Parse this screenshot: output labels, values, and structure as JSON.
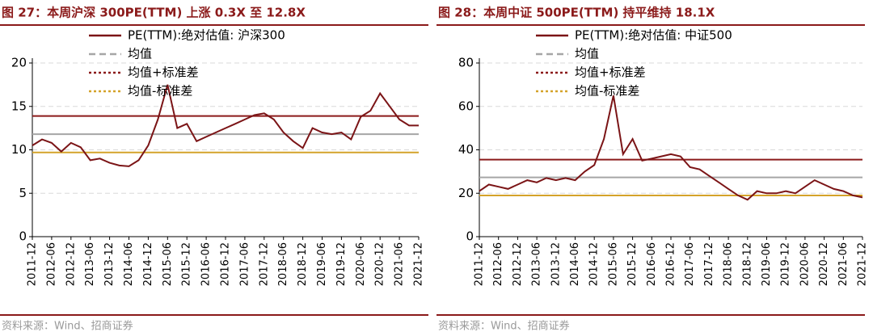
{
  "chart_data": [
    {
      "type": "line",
      "title": "图 27：本周沪深 300PE(TTM) 上涨 0.3X 至 12.8X",
      "source": "资料来源：Wind、招商证券",
      "x": [
        "2011-12",
        "2012-03",
        "2012-06",
        "2012-09",
        "2012-12",
        "2013-03",
        "2013-06",
        "2013-09",
        "2013-12",
        "2014-03",
        "2014-06",
        "2014-09",
        "2014-12",
        "2015-03",
        "2015-06",
        "2015-09",
        "2015-12",
        "2016-03",
        "2016-06",
        "2016-09",
        "2016-12",
        "2017-03",
        "2017-06",
        "2017-09",
        "2017-12",
        "2018-03",
        "2018-06",
        "2018-09",
        "2018-12",
        "2019-03",
        "2019-06",
        "2019-09",
        "2019-12",
        "2020-03",
        "2020-06",
        "2020-09",
        "2020-12",
        "2021-03",
        "2021-06",
        "2021-09",
        "2021-12"
      ],
      "xticks": [
        "2011-12",
        "2012-06",
        "2012-12",
        "2013-06",
        "2013-12",
        "2014-06",
        "2014-12",
        "2015-06",
        "2015-12",
        "2016-06",
        "2016-12",
        "2017-06",
        "2017-12",
        "2018-06",
        "2018-12",
        "2019-06",
        "2019-12",
        "2020-06",
        "2020-12",
        "2021-06",
        "2021-12"
      ],
      "series": [
        {
          "name": "PE(TTM):绝对估值: 沪深300",
          "color": "#7b1416",
          "values": [
            10.5,
            11.2,
            10.8,
            9.8,
            10.8,
            10.3,
            8.8,
            9.0,
            8.5,
            8.2,
            8.1,
            8.8,
            10.5,
            13.5,
            17.5,
            12.5,
            13.0,
            11.0,
            11.5,
            12.0,
            12.5,
            13.0,
            13.5,
            14.0,
            14.2,
            13.5,
            12.0,
            11.0,
            10.2,
            12.5,
            12.0,
            11.8,
            12.0,
            11.2,
            13.8,
            14.5,
            16.5,
            15.0,
            13.5,
            12.8,
            12.8
          ]
        }
      ],
      "reference_lines": [
        {
          "name": "均值",
          "color": "#a6a6a6",
          "value": 11.8
        },
        {
          "name": "均值+标准差",
          "color": "#8b1a1a",
          "value": 13.9
        },
        {
          "name": "均值-标准差",
          "color": "#d4a32a",
          "value": 9.7
        }
      ],
      "ylim": [
        0,
        20
      ],
      "yticks": [
        0,
        5,
        10,
        15,
        20
      ],
      "grid": true
    },
    {
      "type": "line",
      "title": "图 28：本周中证 500PE(TTM) 持平维持 18.1X",
      "source": "资料来源：Wind、招商证券",
      "x": [
        "2011-12",
        "2012-03",
        "2012-06",
        "2012-09",
        "2012-12",
        "2013-03",
        "2013-06",
        "2013-09",
        "2013-12",
        "2014-03",
        "2014-06",
        "2014-09",
        "2014-12",
        "2015-03",
        "2015-06",
        "2015-09",
        "2015-12",
        "2016-03",
        "2016-06",
        "2016-09",
        "2016-12",
        "2017-03",
        "2017-06",
        "2017-09",
        "2017-12",
        "2018-03",
        "2018-06",
        "2018-09",
        "2018-12",
        "2019-03",
        "2019-06",
        "2019-09",
        "2019-12",
        "2020-03",
        "2020-06",
        "2020-09",
        "2020-12",
        "2021-03",
        "2021-06",
        "2021-09",
        "2021-12"
      ],
      "xticks": [
        "2011-12",
        "2012-06",
        "2012-12",
        "2013-06",
        "2013-12",
        "2014-06",
        "2014-12",
        "2015-06",
        "2015-12",
        "2016-06",
        "2016-12",
        "2017-06",
        "2017-12",
        "2018-06",
        "2018-12",
        "2019-06",
        "2019-12",
        "2020-06",
        "2020-12",
        "2021-06",
        "2021-12"
      ],
      "series": [
        {
          "name": "PE(TTM):绝对估值: 中证500",
          "color": "#7b1416",
          "values": [
            21,
            24,
            23,
            22,
            24,
            26,
            25,
            27,
            26,
            27,
            26,
            30,
            33,
            45,
            65,
            38,
            45,
            35,
            36,
            37,
            38,
            37,
            32,
            31,
            28,
            25,
            22,
            19,
            17,
            21,
            20,
            20,
            21,
            20,
            23,
            26,
            24,
            22,
            21,
            19,
            18.1
          ]
        }
      ],
      "reference_lines": [
        {
          "name": "均值",
          "color": "#a6a6a6",
          "value": 27.3
        },
        {
          "name": "均值+标准差",
          "color": "#8b1a1a",
          "value": 35.5
        },
        {
          "name": "均值-标准差",
          "color": "#d4a32a",
          "value": 19
        }
      ],
      "ylim": [
        0,
        80
      ],
      "yticks": [
        0,
        20,
        40,
        60,
        80
      ],
      "grid": true
    }
  ]
}
